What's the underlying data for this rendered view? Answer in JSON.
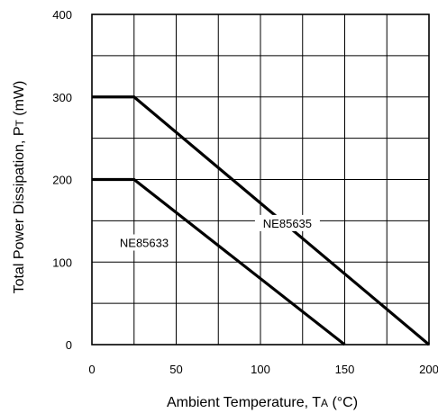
{
  "chart_data": {
    "type": "line",
    "title": "",
    "xlabel": {
      "main": "Ambient Temperature, T",
      "sub": "A",
      "unit": " (°C)"
    },
    "ylabel": {
      "main": "Total Power Dissipation, P",
      "sub": "T",
      "unit": " (mW)"
    },
    "xlim": [
      0,
      200
    ],
    "ylim": [
      0,
      400
    ],
    "x_ticks": [
      0,
      50,
      100,
      150,
      200
    ],
    "y_ticks": [
      0,
      100,
      200,
      300,
      400
    ],
    "x_grid_step": 25,
    "y_grid_step": 50,
    "grid": true,
    "series": [
      {
        "name": "NE85635",
        "x": [
          0,
          25,
          200
        ],
        "y": [
          300,
          300,
          0
        ]
      },
      {
        "name": "NE85633",
        "x": [
          0,
          25,
          150
        ],
        "y": [
          200,
          200,
          0
        ]
      }
    ]
  }
}
